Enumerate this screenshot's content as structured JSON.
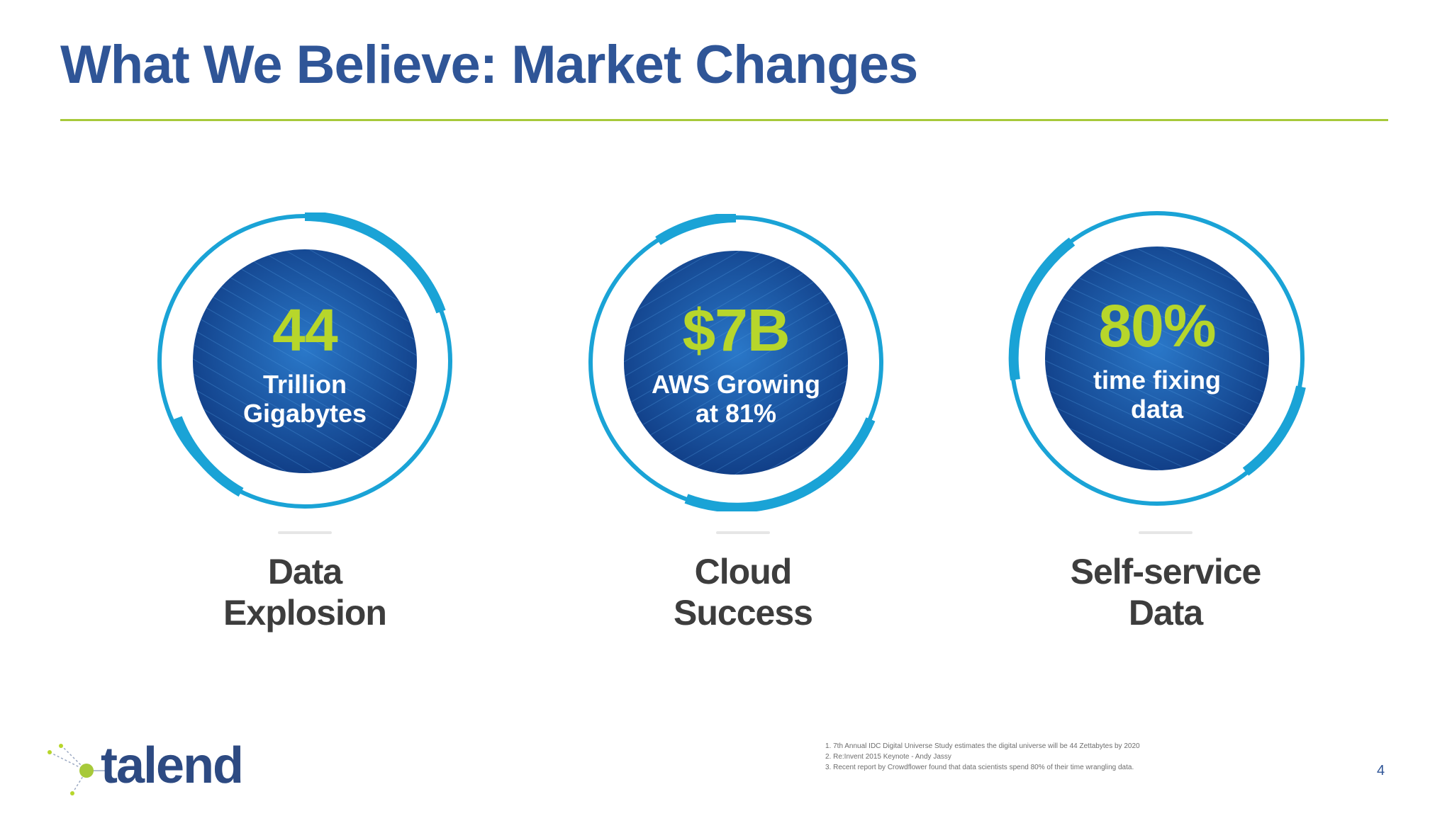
{
  "title": "What We Believe: Market Changes",
  "colors": {
    "title": "#2f5597",
    "rule": "#a7c93a",
    "ring": "#1aa3d6",
    "disc_inner": "#1e63b8",
    "disc_outer": "#123c86",
    "number": "#b7d62b",
    "caption": "#3d3d3d"
  },
  "stats": [
    {
      "number": "44",
      "desc_line1": "Trillion",
      "desc_line2": "Gigabytes",
      "caption_line1": "Data",
      "caption_line2": "Explosion"
    },
    {
      "number": "$7B",
      "desc_line1": "AWS Growing",
      "desc_line2": "at 81%",
      "caption_line1": "Cloud",
      "caption_line2": "Success"
    },
    {
      "number": "80%",
      "desc_line1": "time fixing",
      "desc_line2": "data",
      "caption_line1": "Self-service",
      "caption_line2": "Data"
    }
  ],
  "footnotes": [
    "1. 7th Annual IDC Digital Universe Study estimates the digital universe will be 44 Zettabytes by 2020",
    "2. Re:Invent 2015 Keynote - Andy Jassy",
    "3. Recent report by Crowdflower found that data scientists spend 80% of their time wrangling data."
  ],
  "page_number": "4",
  "logo": {
    "text": "talend",
    "icon": "talend-dots-logo-icon"
  }
}
